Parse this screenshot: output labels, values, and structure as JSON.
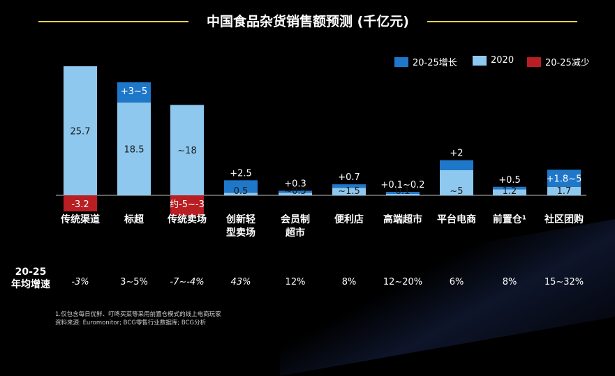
{
  "title": "中国食品杂货销售额预测 (千亿元)",
  "legend": [
    {
      "label": "20-25增长",
      "color": "#1f77c9"
    },
    {
      "label": "2020",
      "color": "#8ec8ee"
    },
    {
      "label": "20-25减少",
      "color": "#b81e22"
    }
  ],
  "growth_header": "20-25\n年均增速",
  "chart_data": {
    "type": "bar",
    "title": "中国食品杂货销售额预测 (千亿元)",
    "xlabel": "",
    "ylabel": "",
    "categories": [
      "传统渠道",
      "标超",
      "传统卖场",
      "创新轻\n型卖场",
      "会员制\n超市",
      "便利店",
      "高端超市",
      "平台电商",
      "前置仓¹",
      "社区团购"
    ],
    "series": [
      {
        "name": "2020",
        "values": [
          25.7,
          18.5,
          18,
          0.5,
          0.5,
          1.5,
          0.1,
          5,
          1.2,
          1.7
        ],
        "labels": [
          "25.7",
          "18.5",
          "~18",
          "0.5",
          "~0.5",
          "~1.5",
          "0.1",
          "~5",
          "1.2",
          "1.7"
        ]
      },
      {
        "name": "20-25增长",
        "values": [
          0,
          4,
          0,
          2.5,
          0.3,
          0.7,
          0.15,
          2,
          0.5,
          3.4
        ],
        "labels": [
          "",
          "+3~5",
          "",
          "+2.5",
          "+0.3",
          "+0.7",
          "+0.1~0.2",
          "+2",
          "+0.5",
          "+1.8~5"
        ]
      },
      {
        "name": "20-25减少",
        "values": [
          -3.2,
          0,
          -4,
          0,
          0,
          0,
          0,
          0,
          0,
          0
        ],
        "labels": [
          "-3.2",
          "",
          "约-5~-3",
          "",
          "",
          "",
          "",
          "",
          "",
          ""
        ]
      }
    ],
    "growth_rates": [
      "-3%",
      "3~5%",
      "-7~-4%",
      "43%",
      "12%",
      "8%",
      "12~20%",
      "6%",
      "8%",
      "15~32%"
    ]
  },
  "footnote": {
    "line1": "1.仅包含每日优鲜、叮咚买菜等采用前置仓模式的线上电商玩家",
    "line2": "资料来源: Euromonitor; BCG零售行业数据库; BCG分析"
  }
}
